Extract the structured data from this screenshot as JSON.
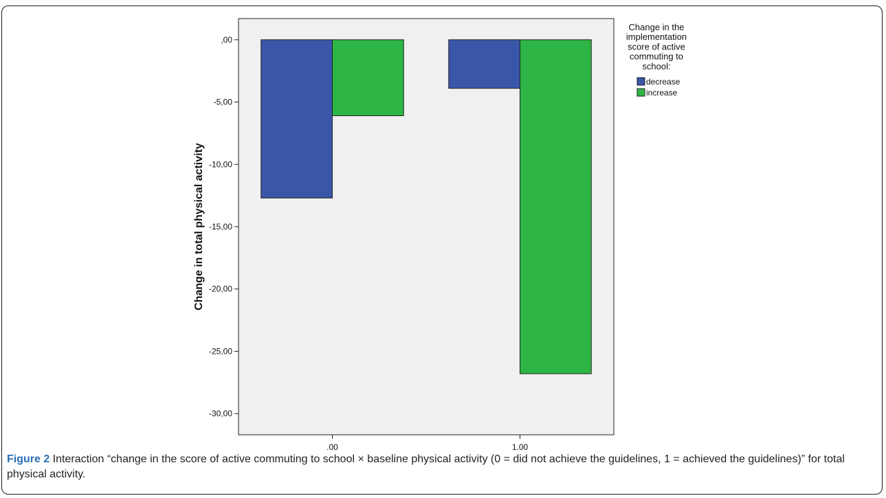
{
  "chart_data": {
    "type": "bar",
    "title": "",
    "xlabel": "",
    "ylabel": "Change in total physical activity",
    "categories": [
      ".00",
      "1.00"
    ],
    "series": [
      {
        "name": "decrease",
        "values": [
          -12.7,
          -3.9
        ],
        "color": "#3a56a8"
      },
      {
        "name": "increase",
        "values": [
          -6.1,
          -26.8
        ],
        "color": "#2db545"
      }
    ],
    "ylim": [
      -31.7,
      1.7
    ],
    "yticks": [
      0,
      -5,
      -10,
      -15,
      -20,
      -25,
      -30
    ],
    "ytick_labels": [
      ",00",
      "-5,00",
      "-10,00",
      "-15,00",
      "-20,00",
      "-25,00",
      "-30,00"
    ],
    "legend": {
      "title_lines": [
        "Change in the",
        "implementation",
        "score of active",
        "commuting to",
        "school:"
      ],
      "position": "right"
    },
    "plot_background": "#f0f0f0",
    "grid": false
  },
  "caption": {
    "label": "Figure 2",
    "text": "Interaction “change in the score of active commuting to school × baseline physical activity (0 = did not achieve the guidelines, 1 = achieved the guidelines)” for total physical activity."
  }
}
